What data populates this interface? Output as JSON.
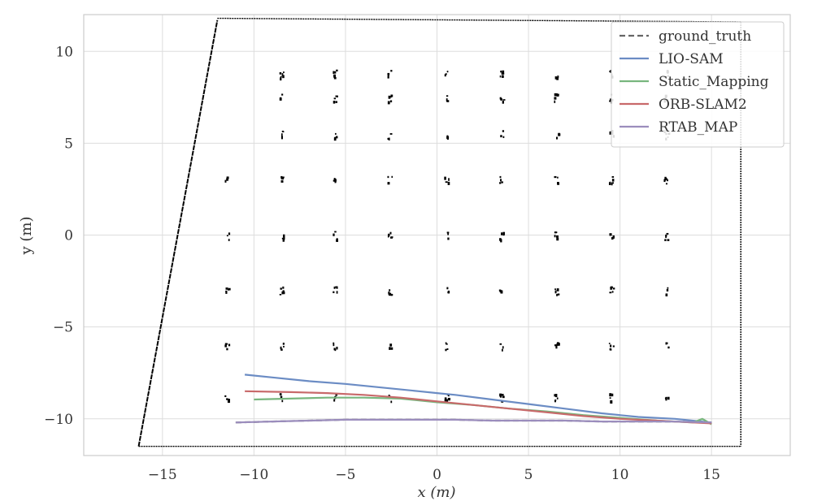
{
  "chart_data": {
    "type": "line",
    "title": "",
    "xlabel": "x (m)",
    "ylabel": "y (m)",
    "xlim": [
      -19.3,
      19.3
    ],
    "ylim": [
      -12.0,
      12.0
    ],
    "x_ticks": [
      -15,
      -10,
      -5,
      0,
      5,
      10,
      15
    ],
    "x_tick_labels": [
      "−15",
      "−10",
      "−5",
      "0",
      "5",
      "10",
      "15"
    ],
    "y_ticks": [
      -10,
      -5,
      0,
      5,
      10
    ],
    "y_tick_labels": [
      "−10",
      "−5",
      "0",
      "5",
      "10"
    ],
    "grid": true,
    "legend_position": "top-right",
    "background_map": {
      "left_wall": [
        [
          -16.3,
          -11.5
        ],
        [
          -12.0,
          11.7
        ]
      ],
      "top_edge": [
        [
          -12.0,
          11.8
        ],
        [
          16.6,
          11.6
        ]
      ],
      "right_edge": [
        [
          16.6,
          11.6
        ],
        [
          16.6,
          -11.5
        ]
      ],
      "bottom_edge": [
        [
          -16.3,
          -11.5
        ],
        [
          16.6,
          -11.5
        ]
      ],
      "pillar_columns_x": [
        -11.5,
        -8.5,
        -5.6,
        -2.6,
        0.5,
        3.5,
        6.5,
        9.5,
        12.5
      ],
      "pillar_rows_y": [
        8.8,
        7.5,
        5.5,
        3.0,
        0.0,
        -3.0,
        -6.0,
        -8.8
      ]
    },
    "series": [
      {
        "name": "ground_truth",
        "color": "#666666",
        "dash": true,
        "x": [
          -11.0,
          -9.0,
          -7.0,
          -5.0,
          -3.0,
          -1.0,
          1.0,
          3.0,
          5.0,
          7.0,
          9.0,
          11.0,
          13.0,
          15.0
        ],
        "y": [
          -10.2,
          -10.15,
          -10.1,
          -10.05,
          -10.05,
          -10.05,
          -10.05,
          -10.1,
          -10.1,
          -10.1,
          -10.15,
          -10.15,
          -10.15,
          -10.2
        ]
      },
      {
        "name": "LIO-SAM",
        "color": "#6b8cc4",
        "dash": false,
        "x": [
          -10.5,
          -9.0,
          -7.0,
          -5.0,
          -3.0,
          -1.0,
          0.0,
          1.0,
          3.0,
          5.0,
          7.0,
          9.0,
          11.0,
          13.0,
          15.0
        ],
        "y": [
          -7.6,
          -7.75,
          -7.95,
          -8.1,
          -8.3,
          -8.5,
          -8.6,
          -8.7,
          -8.95,
          -9.2,
          -9.45,
          -9.7,
          -9.9,
          -10.0,
          -10.2
        ]
      },
      {
        "name": "Static_Mapping",
        "color": "#78b67e",
        "dash": false,
        "x": [
          -10.0,
          -8.0,
          -6.0,
          -4.0,
          -2.0,
          0.0,
          2.0,
          4.0,
          6.0,
          8.0,
          10.0,
          12.0,
          14.0,
          14.5,
          15.0
        ],
        "y": [
          -8.95,
          -8.9,
          -8.85,
          -8.85,
          -8.9,
          -9.1,
          -9.25,
          -9.45,
          -9.6,
          -9.8,
          -9.95,
          -10.1,
          -10.2,
          -10.0,
          -10.3
        ]
      },
      {
        "name": "ORB-SLAM2",
        "color": "#c8696a",
        "dash": false,
        "x": [
          -10.5,
          -8.0,
          -6.0,
          -4.0,
          -2.0,
          0.0,
          2.0,
          4.0,
          6.0,
          8.0,
          10.0,
          12.0,
          14.0,
          15.0
        ],
        "y": [
          -8.5,
          -8.55,
          -8.6,
          -8.7,
          -8.85,
          -9.05,
          -9.25,
          -9.45,
          -9.65,
          -9.85,
          -10.0,
          -10.1,
          -10.2,
          -10.25
        ]
      },
      {
        "name": "RTAB_MAP",
        "color": "#9b8dbd",
        "dash": false,
        "x": [
          -11.0,
          -9.0,
          -7.0,
          -5.0,
          -3.0,
          -1.0,
          1.0,
          3.0,
          5.0,
          7.0,
          9.0,
          11.0,
          13.0,
          15.0
        ],
        "y": [
          -10.2,
          -10.15,
          -10.1,
          -10.05,
          -10.05,
          -10.05,
          -10.05,
          -10.1,
          -10.1,
          -10.1,
          -10.15,
          -10.15,
          -10.15,
          -10.2
        ]
      }
    ]
  }
}
